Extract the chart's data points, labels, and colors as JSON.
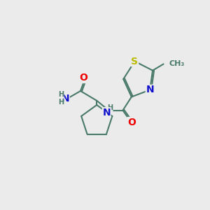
{
  "bg_color": "#ebebeb",
  "bond_color": "#4a7a6a",
  "bond_width": 1.5,
  "atom_colors": {
    "O": "#ee0000",
    "N": "#1111cc",
    "S": "#bbbb00",
    "C": "#4a7a6a",
    "H": "#4a7a6a"
  },
  "font_size": 9
}
